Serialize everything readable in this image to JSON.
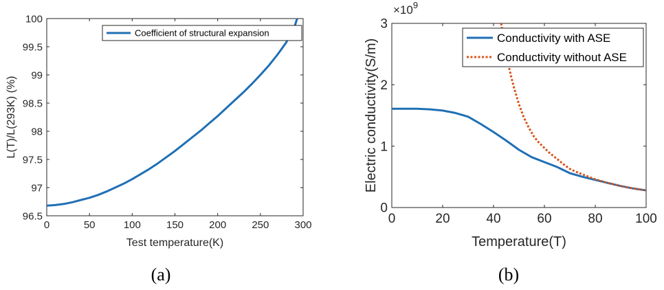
{
  "colors": {
    "blue": "#1f6fb4",
    "orange": "#d9541a",
    "axis": "#262626"
  },
  "chart_data": [
    {
      "type": "line",
      "caption": "(a)",
      "xlabel": "Test temperature(K)",
      "ylabel": "L(T)/L(293K) (%)",
      "xlim": [
        0,
        300
      ],
      "ylim": [
        96.5,
        100
      ],
      "xticks": [
        "0",
        "50",
        "100",
        "150",
        "200",
        "250",
        "300"
      ],
      "yticks": [
        "96.5",
        "97",
        "97.5",
        "98",
        "98.5",
        "99",
        "99.5",
        "100"
      ],
      "legend_position": "top-right",
      "series": [
        {
          "name": "Coefficient of structural expansion",
          "style": "solid",
          "color": "#1f6fb4",
          "x": [
            0,
            10,
            20,
            30,
            40,
            50,
            60,
            70,
            80,
            90,
            100,
            110,
            120,
            130,
            140,
            150,
            160,
            170,
            180,
            190,
            200,
            210,
            220,
            230,
            240,
            250,
            260,
            270,
            280,
            290,
            293
          ],
          "y": [
            96.68,
            96.69,
            96.71,
            96.74,
            96.78,
            96.82,
            96.87,
            96.93,
            97.0,
            97.07,
            97.15,
            97.24,
            97.33,
            97.43,
            97.54,
            97.65,
            97.77,
            97.89,
            98.01,
            98.14,
            98.27,
            98.41,
            98.55,
            98.69,
            98.84,
            99.0,
            99.17,
            99.36,
            99.57,
            99.86,
            100.0
          ]
        }
      ]
    },
    {
      "type": "line",
      "caption": "(b)",
      "xlabel": "Temperature(T)",
      "ylabel": "Electric conductivity(S/m)",
      "multiplier_base": "×10",
      "multiplier_exp": "9",
      "xlim": [
        0,
        100
      ],
      "ylim": [
        0,
        3
      ],
      "xticks": [
        "0",
        "20",
        "40",
        "60",
        "80",
        "100"
      ],
      "yticks": [
        "0",
        "1",
        "2",
        "3"
      ],
      "legend_position": "top-right",
      "series": [
        {
          "name": "Conductivity with ASE",
          "style": "solid",
          "color": "#1f6fb4",
          "x": [
            0,
            5,
            10,
            15,
            20,
            25,
            30,
            35,
            40,
            45,
            50,
            55,
            60,
            65,
            70,
            75,
            80,
            85,
            90,
            95,
            100
          ],
          "y": [
            1.61,
            1.61,
            1.61,
            1.6,
            1.58,
            1.54,
            1.48,
            1.36,
            1.23,
            1.09,
            0.94,
            0.82,
            0.74,
            0.66,
            0.56,
            0.5,
            0.45,
            0.4,
            0.35,
            0.31,
            0.28
          ]
        },
        {
          "name": "Conductivity without ASE",
          "style": "dotted",
          "color": "#d9541a",
          "x": [
            43,
            44,
            45,
            46,
            47,
            48,
            49,
            50,
            52,
            54,
            56,
            58,
            60,
            62,
            65,
            68,
            70,
            72,
            75,
            80,
            85,
            90,
            95,
            100
          ],
          "y": [
            3.0,
            2.75,
            2.5,
            2.3,
            2.12,
            1.96,
            1.82,
            1.68,
            1.46,
            1.29,
            1.15,
            1.05,
            0.97,
            0.89,
            0.79,
            0.69,
            0.63,
            0.59,
            0.54,
            0.46,
            0.4,
            0.35,
            0.31,
            0.28
          ]
        }
      ]
    }
  ]
}
